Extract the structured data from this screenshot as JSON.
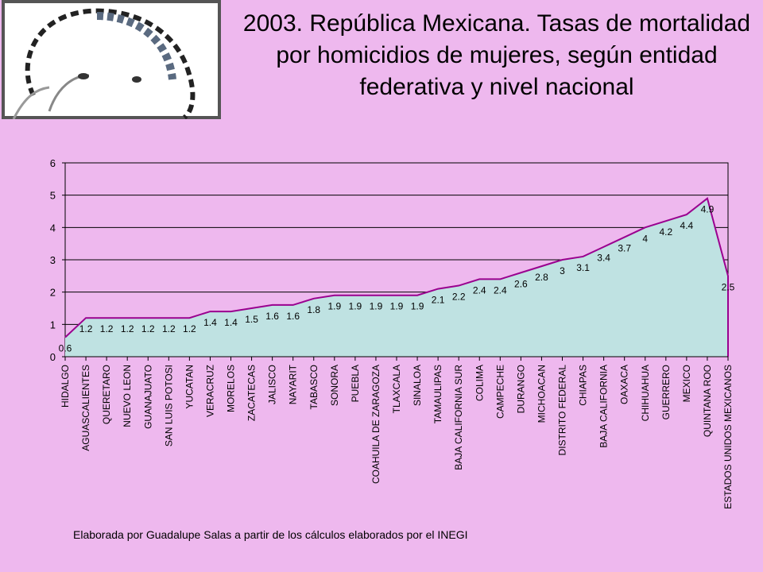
{
  "title": "2003. República Mexicana. Tasas de mortalidad por homicidios de mujeres, según entidad federativa y nivel nacional",
  "note": "Elaborada por Guadalupe Salas a partir de los cálculos elaborados por el INEGI",
  "colors": {
    "background": "#eeb8ee",
    "area": "#bfe2e2",
    "outline": "#9a008f"
  },
  "chart_data": {
    "type": "area",
    "title": "",
    "xlabel": "",
    "ylabel": "",
    "ylim": [
      0,
      6
    ],
    "yticks": [
      0,
      1,
      2,
      3,
      4,
      5,
      6
    ],
    "grid": true,
    "legend": "none",
    "categories": [
      "HIDALGO",
      "AGUASCALIENTES",
      "QUERETARO",
      "NUEVO LEON",
      "GUANAJUATO",
      "SAN LUIS POTOSI",
      "YUCATAN",
      "VERACRUZ",
      "MORELOS",
      "ZACATECAS",
      "JALISCO",
      "NAYARIT",
      "TABASCO",
      "SONORA",
      "PUEBLA",
      "COAHUILA DE ZARAGOZA",
      "TLAXCALA",
      "SINALOA",
      "TAMAULIPAS",
      "BAJA CALIFORNIA SUR",
      "COLIMA",
      "CAMPECHE",
      "DURANGO",
      "MICHOACAN",
      "DISTRITO FEDERAL",
      "CHIAPAS",
      "BAJA CALIFORNIA",
      "OAXACA",
      "CHIHUAHUA",
      "GUERRERO",
      "MEXICO",
      "QUINTANA ROO",
      "ESTADOS UNIDOS MEXICANOS"
    ],
    "values": [
      0.6,
      1.2,
      1.2,
      1.2,
      1.2,
      1.2,
      1.2,
      1.4,
      1.4,
      1.5,
      1.6,
      1.6,
      1.8,
      1.9,
      1.9,
      1.9,
      1.9,
      1.9,
      2.1,
      2.2,
      2.4,
      2.4,
      2.6,
      2.8,
      3,
      3.1,
      3.4,
      3.7,
      4,
      4.2,
      4.4,
      4.9,
      2.5
    ]
  }
}
